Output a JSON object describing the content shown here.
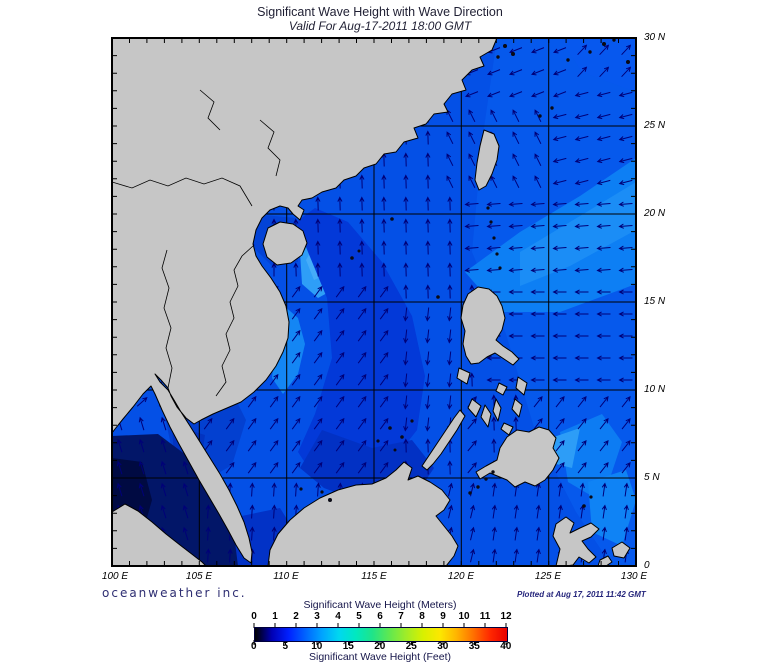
{
  "header": {
    "title": "Significant Wave Height with Wave Direction",
    "subtitle": "Valid For Aug-17-2011 18:00 GMT"
  },
  "axes": {
    "lon_labels": [
      "100 E",
      "105 E",
      "110 E",
      "115 E",
      "120 E",
      "125 E",
      "130 E"
    ],
    "lat_labels": [
      "30 N",
      "25 N",
      "20 N",
      "15 N",
      "10 N",
      "5 N",
      "0"
    ],
    "lon_range": [
      100,
      130
    ],
    "lat_range": [
      0,
      30
    ]
  },
  "footer": {
    "branding": "oceanweather inc.",
    "plotted_at": "Plotted at Aug 17, 2011 11:42 GMT"
  },
  "legend": {
    "meters_label": "Significant Wave Height (Meters)",
    "feet_label": "Significant Wave Height (Feet)",
    "meters_ticks": [
      "0",
      "1",
      "2",
      "3",
      "4",
      "5",
      "6",
      "7",
      "8",
      "9",
      "10",
      "11",
      "12"
    ],
    "feet_ticks": [
      "0",
      "5",
      "10",
      "15",
      "20",
      "25",
      "30",
      "35",
      "40"
    ],
    "colormap": [
      "#000000",
      "#0000b4",
      "#0020ff",
      "#0064ff",
      "#00a4ff",
      "#00d8f0",
      "#00e8c0",
      "#20e488",
      "#60e850",
      "#a0ec28",
      "#d8f000",
      "#fce800",
      "#ffb400",
      "#ff7000",
      "#ff2800",
      "#e80000"
    ]
  },
  "colors": {
    "sea_base": "#0450e6",
    "land": "#c6c6c6",
    "arrow": "#000078",
    "navy": "#2e2e72",
    "plotted": "#26267c",
    "title_text": "#1f1f33",
    "label_text": "#000000",
    "legend_text": "#16164a",
    "pacific": "#0659ec",
    "band": "#0d7ff4",
    "band_core": "#1b8df6",
    "light_patch": "#2e9ef7",
    "light_core": "#45acf9",
    "viet_light": "#1486f4",
    "dark_swath": "#0339d8",
    "dark_core": "#0231c4",
    "tonkin": "#0343d6",
    "got": "#0340d0",
    "got_dark": "#0233c0",
    "malacca": "#021668",
    "malacca_core": "#000a42",
    "karimata": "#0232c6",
    "se_light1": "#0d7cf3",
    "se_light2": "#0f83f5",
    "se_bright": "#2d9df7",
    "topright": "#0758ee"
  },
  "arrows": {
    "spacing": 22,
    "length": 13,
    "head": 4.6,
    "default_angle": 90,
    "rules": [
      {
        "lon": [
          100,
          104.6
        ],
        "lat": [
          1.5,
          8.5
        ],
        "angle": 105
      },
      {
        "lon": [
          100,
          106.3
        ],
        "lat": [
          8.5,
          13.8
        ],
        "angle": 40
      },
      {
        "lon": [
          105.5,
          110.3
        ],
        "lat": [
          16.5,
          22
        ],
        "angle": 88
      },
      {
        "lon": [
          126,
          130
        ],
        "lat": [
          27.2,
          30
        ],
        "angle": 45
      },
      {
        "lon": [
          118.5,
          126
        ],
        "lat": [
          26.5,
          30
        ],
        "angle": 200
      },
      {
        "lon": [
          118.5,
          124.5
        ],
        "lat": [
          21,
          26.5
        ],
        "angle": 115
      },
      {
        "lon": [
          124.5,
          130
        ],
        "lat": [
          21,
          27.2
        ],
        "angle": 192
      },
      {
        "lon": [
          120.5,
          130
        ],
        "lat": [
          16,
          21
        ],
        "angle": 183
      },
      {
        "lon": [
          121.5,
          130
        ],
        "lat": [
          10.5,
          16
        ],
        "angle": 178
      },
      {
        "lon": [
          124,
          130
        ],
        "lat": [
          5.5,
          10.5
        ],
        "angle": 50
      },
      {
        "lon": [
          121,
          130
        ],
        "lat": [
          0,
          5.5
        ],
        "angle": 80
      },
      {
        "lon": [
          116,
          119.5
        ],
        "lat": [
          7.5,
          15.5
        ],
        "angle": 262
      },
      {
        "lon": [
          104.5,
          116
        ],
        "lat": [
          5.5,
          16.5
        ],
        "angle": 52
      },
      {
        "lon": [
          110,
          119.5
        ],
        "lat": [
          15.5,
          21
        ],
        "angle": 90
      },
      {
        "lon": [
          102,
          116
        ],
        "lat": [
          0,
          5.5
        ],
        "angle": 85
      },
      {
        "lon": [
          119.5,
          121.5
        ],
        "lat": [
          5.5,
          10.5
        ],
        "angle": 48
      },
      {
        "lon": [
          115,
          124
        ],
        "lat": [
          0,
          5.5
        ],
        "angle": 75
      }
    ]
  }
}
